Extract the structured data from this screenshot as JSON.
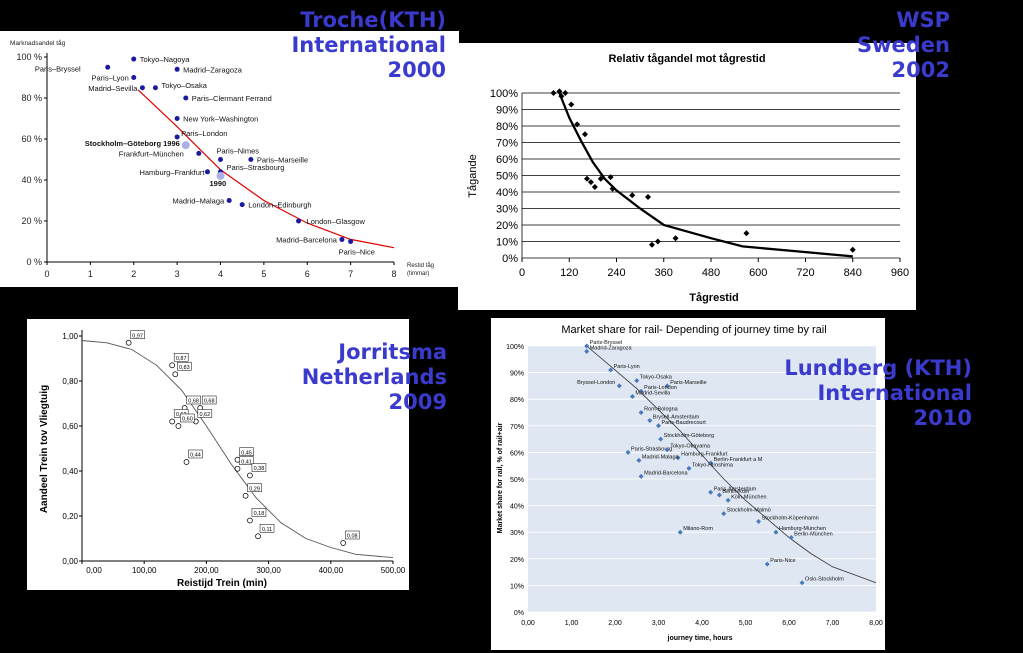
{
  "captions": {
    "tl": [
      "Troche(KTH)",
      "International",
      "2000"
    ],
    "tr": [
      "WSP",
      "Sweden",
      "2002"
    ],
    "bl": [
      "Jorritsma",
      "Netherlands",
      "2009"
    ],
    "br": [
      "Lundberg (KTH)",
      "International",
      "2010"
    ]
  },
  "chart_data": [
    {
      "type": "scatter",
      "title": "",
      "ylabel": "Marknadsandel tåg",
      "xlabel": "Restid tåg (timmar)",
      "xlim": [
        0,
        8
      ],
      "ylim": [
        0,
        100
      ],
      "x_ticks": [
        "0",
        "1",
        "2",
        "3",
        "4",
        "5",
        "6",
        "7",
        "8"
      ],
      "y_ticks": [
        "0 %",
        "20 %",
        "40 %",
        "60 %",
        "80 %",
        "100 %"
      ],
      "points": [
        {
          "label": "Paris–Bryssel",
          "x": 1.4,
          "y": 95
        },
        {
          "label": "Tokyo–Nagoya",
          "x": 2.0,
          "y": 99
        },
        {
          "label": "Paris–Lyon",
          "x": 2.0,
          "y": 90
        },
        {
          "label": "Madrid–Zaragoza",
          "x": 3.0,
          "y": 94
        },
        {
          "label": "Madrid–Sevilla",
          "x": 2.2,
          "y": 85
        },
        {
          "label": "Tokyo–Osaka",
          "x": 2.5,
          "y": 85
        },
        {
          "label": "Paris–Clermant Ferrand",
          "x": 3.2,
          "y": 80
        },
        {
          "label": "New York–Washington",
          "x": 3.0,
          "y": 70
        },
        {
          "label": "Paris–London",
          "x": 3.0,
          "y": 61
        },
        {
          "label": "Stockholm–Göteborg 1996",
          "x": 3.2,
          "y": 57,
          "highlight": true
        },
        {
          "label": "Frankfurt–München",
          "x": 3.5,
          "y": 53
        },
        {
          "label": "Paris–Nimes",
          "x": 4.0,
          "y": 50
        },
        {
          "label": "Paris–Marseille",
          "x": 4.7,
          "y": 50
        },
        {
          "label": "Hamburg–Frankfurt",
          "x": 3.7,
          "y": 44
        },
        {
          "label": "Paris–Strasbourg",
          "x": 4.0,
          "y": 44
        },
        {
          "label": "1990",
          "x": 4.0,
          "y": 42,
          "highlight": true
        },
        {
          "label": "Madrid–Malaga",
          "x": 4.2,
          "y": 30
        },
        {
          "label": "London–Edinburgh",
          "x": 4.5,
          "y": 28
        },
        {
          "label": "London–Glasgow",
          "x": 5.8,
          "y": 20
        },
        {
          "label": "Madrid–Barcelona",
          "x": 6.8,
          "y": 11
        },
        {
          "label": "Paris–Nice",
          "x": 7.0,
          "y": 10
        }
      ],
      "trend": [
        [
          2.1,
          84
        ],
        [
          3,
          66
        ],
        [
          4,
          45
        ],
        [
          5,
          30
        ],
        [
          6,
          19
        ],
        [
          7,
          11
        ],
        [
          8,
          7
        ]
      ],
      "colors": {
        "points": "#1a1aa0",
        "highlight": "#aab0e6",
        "trend": "#e00000"
      }
    },
    {
      "type": "scatter",
      "title": "Relativ tågandel mot tågrestid",
      "xlabel": "Tågrestid",
      "ylabel": "Tågande",
      "xlim": [
        0,
        960
      ],
      "ylim": [
        0,
        100
      ],
      "x_ticks": [
        "0",
        "120",
        "240",
        "360",
        "480",
        "600",
        "720",
        "840",
        "960"
      ],
      "y_ticks": [
        "0%",
        "10%",
        "20%",
        "30%",
        "40%",
        "50%",
        "60%",
        "70%",
        "80%",
        "90%",
        "100%"
      ],
      "points": [
        [
          80,
          100
        ],
        [
          95,
          101
        ],
        [
          100,
          98
        ],
        [
          110,
          100
        ],
        [
          125,
          93
        ],
        [
          140,
          81
        ],
        [
          160,
          75
        ],
        [
          165,
          48
        ],
        [
          175,
          46
        ],
        [
          185,
          43
        ],
        [
          200,
          48
        ],
        [
          225,
          49
        ],
        [
          230,
          42
        ],
        [
          280,
          38
        ],
        [
          320,
          37
        ],
        [
          330,
          8
        ],
        [
          345,
          10
        ],
        [
          390,
          12
        ],
        [
          570,
          15
        ],
        [
          840,
          5
        ]
      ],
      "trend": [
        [
          95,
          100
        ],
        [
          120,
          85
        ],
        [
          150,
          71
        ],
        [
          180,
          58
        ],
        [
          210,
          48
        ],
        [
          240,
          41
        ],
        [
          300,
          30
        ],
        [
          360,
          20
        ],
        [
          480,
          12
        ],
        [
          560,
          7
        ],
        [
          700,
          4
        ],
        [
          840,
          1
        ]
      ],
      "colors": {
        "points": "#000000",
        "trend": "#000000"
      }
    },
    {
      "type": "scatter",
      "title": "",
      "xlabel": "Reistijd Trein (min)",
      "ylabel": "Aandeel Trein tov Vliegtuig",
      "xlim": [
        0,
        500
      ],
      "ylim": [
        0,
        1
      ],
      "x_ticks": [
        "0,00",
        "100,00",
        "200,00",
        "300,00",
        "400,00",
        "500,00"
      ],
      "y_ticks": [
        "0,00",
        "0,20",
        "0,40",
        "0,60",
        "0,80",
        "1,00"
      ],
      "points": [
        {
          "x": 75,
          "y": 0.97,
          "label": "0,97"
        },
        {
          "x": 145,
          "y": 0.87,
          "label": "0,87"
        },
        {
          "x": 150,
          "y": 0.83,
          "label": "0,83"
        },
        {
          "x": 165,
          "y": 0.68,
          "label": "0,68"
        },
        {
          "x": 190,
          "y": 0.68,
          "label": "0,68"
        },
        {
          "x": 145,
          "y": 0.62,
          "label": "0,62"
        },
        {
          "x": 183,
          "y": 0.62,
          "label": "0,62"
        },
        {
          "x": 155,
          "y": 0.6,
          "label": "0,60"
        },
        {
          "x": 168,
          "y": 0.44,
          "label": "0,44"
        },
        {
          "x": 250,
          "y": 0.45,
          "label": "0,45"
        },
        {
          "x": 250,
          "y": 0.41,
          "label": "0,41"
        },
        {
          "x": 270,
          "y": 0.38,
          "label": "0,38"
        },
        {
          "x": 263,
          "y": 0.29,
          "label": "0,29"
        },
        {
          "x": 270,
          "y": 0.18,
          "label": "0,18"
        },
        {
          "x": 283,
          "y": 0.11,
          "label": "0,11"
        },
        {
          "x": 420,
          "y": 0.08,
          "label": "0,08"
        }
      ],
      "trend": [
        [
          0,
          0.98
        ],
        [
          40,
          0.97
        ],
        [
          80,
          0.94
        ],
        [
          120,
          0.87
        ],
        [
          160,
          0.76
        ],
        [
          200,
          0.6
        ],
        [
          240,
          0.43
        ],
        [
          280,
          0.28
        ],
        [
          320,
          0.17
        ],
        [
          360,
          0.1
        ],
        [
          400,
          0.06
        ],
        [
          440,
          0.03
        ],
        [
          500,
          0.015
        ]
      ],
      "colors": {
        "points": "#000000",
        "trend": "#555555"
      }
    },
    {
      "type": "scatter",
      "title": "Market share for rail- Depending of journey time by rail",
      "xlabel": "journey time, hours",
      "ylabel": "Market share for rail, % of rail+air",
      "xlim": [
        0,
        8
      ],
      "ylim": [
        0,
        100
      ],
      "x_ticks": [
        "0,00",
        "1,00",
        "2,00",
        "3,00",
        "4,00",
        "5,00",
        "6,00",
        "7,00",
        "8,00"
      ],
      "y_ticks": [
        "0%",
        "10%",
        "20%",
        "30%",
        "40%",
        "50%",
        "60%",
        "70%",
        "80%",
        "90%",
        "100%"
      ],
      "points": [
        {
          "label": "Paris-Bryssel",
          "x": 1.35,
          "y": 100
        },
        {
          "label": "Madrid-Zaragoza",
          "x": 1.35,
          "y": 98
        },
        {
          "label": "Paris-Lyon",
          "x": 1.9,
          "y": 91
        },
        {
          "label": "Tokyo-Osaka",
          "x": 2.5,
          "y": 87
        },
        {
          "label": "Bryssel-London",
          "x": 2.1,
          "y": 85
        },
        {
          "label": "Paris-Marseille",
          "x": 3.2,
          "y": 85
        },
        {
          "label": "Paris-London",
          "x": 2.6,
          "y": 83
        },
        {
          "label": "Madrid-Sevilla",
          "x": 2.4,
          "y": 81
        },
        {
          "label": "Rom-Bologna",
          "x": 2.6,
          "y": 75
        },
        {
          "label": "Brysell-Amsterdam",
          "x": 2.8,
          "y": 72
        },
        {
          "label": "Paris-Baudrecourt",
          "x": 3.0,
          "y": 70
        },
        {
          "label": "Stockholm-Göteborg",
          "x": 3.05,
          "y": 65
        },
        {
          "label": "Paris-Strasbourg",
          "x": 2.3,
          "y": 60
        },
        {
          "label": "Tokyo-Okayama",
          "x": 3.2,
          "y": 61
        },
        {
          "label": "Hamburg-Frankfurt",
          "x": 3.45,
          "y": 58
        },
        {
          "label": "Madrid-Malaga",
          "x": 2.55,
          "y": 57
        },
        {
          "label": "Berlin-Frankfurt a M",
          "x": 4.2,
          "y": 56
        },
        {
          "label": "Tokyo-Hiroshima",
          "x": 3.7,
          "y": 54
        },
        {
          "label": "Madrid-Barcelona",
          "x": 2.6,
          "y": 51
        },
        {
          "label": "Paris-Amsterdam",
          "x": 4.2,
          "y": 45
        },
        {
          "label": "Berlin-Köln",
          "x": 4.4,
          "y": 44
        },
        {
          "label": "Köln-München",
          "x": 4.6,
          "y": 42
        },
        {
          "label": "Stockholm-Malmö",
          "x": 4.5,
          "y": 37
        },
        {
          "label": "Stockholm-Köpenhamn",
          "x": 5.3,
          "y": 34
        },
        {
          "label": "Hamburg-München",
          "x": 5.7,
          "y": 30
        },
        {
          "label": "Berlin-München",
          "x": 6.05,
          "y": 28
        },
        {
          "label": "Milano-Rom",
          "x": 3.5,
          "y": 30
        },
        {
          "label": "Paris-Nice",
          "x": 5.5,
          "y": 18
        },
        {
          "label": "Oslo-Stockholm",
          "x": 6.3,
          "y": 11
        }
      ],
      "trend": [
        [
          1.35,
          100
        ],
        [
          2,
          91
        ],
        [
          2.5,
          84
        ],
        [
          3,
          76
        ],
        [
          3.5,
          68
        ],
        [
          4,
          59
        ],
        [
          4.5,
          50
        ],
        [
          5,
          42
        ],
        [
          5.5,
          35
        ],
        [
          6,
          28
        ],
        [
          6.5,
          22
        ],
        [
          7,
          17
        ],
        [
          7.5,
          14
        ],
        [
          8,
          11
        ]
      ],
      "colors": {
        "points": "#4a7aba",
        "trend": "#333333",
        "plot_bg": "#dfe7f2",
        "grid": "#ffffff"
      }
    }
  ]
}
